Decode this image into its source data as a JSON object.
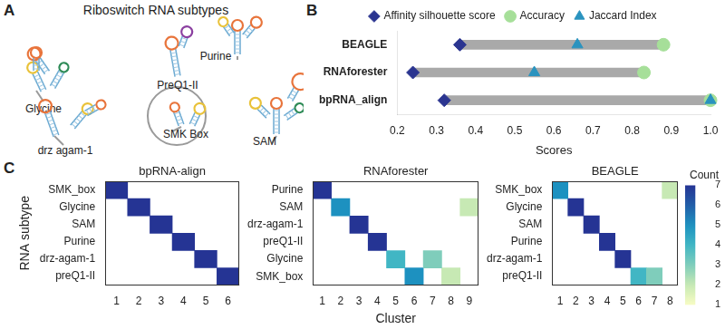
{
  "panel_a": {
    "panel": "A",
    "title": "Riboswitch RNA subtypes",
    "structures": [
      "Glycine",
      "drz agam-1",
      "PreQ1-II",
      "SMK Box",
      "Purine",
      "SAM"
    ]
  },
  "chart_data": [
    {
      "panel": "B",
      "type": "dumbbell",
      "orientation": "horizontal",
      "categories": [
        "BEAGLE",
        "RNAforester",
        "bpRNA_align"
      ],
      "series": [
        {
          "name": "Affinity silhouette score",
          "color": "#2b3590",
          "marker": "diamond",
          "values": [
            0.36,
            0.24,
            0.32
          ]
        },
        {
          "name": "Accuracy",
          "color": "#a6df99",
          "marker": "circle",
          "values": [
            0.88,
            0.83,
            1.0
          ]
        },
        {
          "name": "Jaccard Index",
          "color": "#2a93bf",
          "marker": "triangle",
          "values": [
            0.66,
            0.55,
            1.0
          ]
        }
      ],
      "x_label": "Scores",
      "xlim": [
        0.2,
        1.0
      ],
      "xticks": [
        0.2,
        0.3,
        0.4,
        0.5,
        0.6,
        0.7,
        0.8,
        0.9,
        {
          "value": 1,
          "label": "1.0"
        }
      ],
      "legend": "top",
      "grid": false
    },
    {
      "panel": "C",
      "type": "heatmap",
      "title": "bpRNA-align",
      "y_label": "RNA subtype",
      "y_categories": [
        "SMK_box",
        "Glycine",
        "SAM",
        "Purine",
        "drz-agam-1",
        "preQ1-II"
      ],
      "x_categories": [
        "1",
        "2",
        "3",
        "4",
        "5",
        "6"
      ],
      "cells": [
        [
          7,
          null,
          null,
          null,
          null,
          null
        ],
        [
          null,
          7,
          null,
          null,
          null,
          null
        ],
        [
          null,
          null,
          7,
          null,
          null,
          null
        ],
        [
          null,
          null,
          null,
          7,
          null,
          null
        ],
        [
          null,
          null,
          null,
          null,
          7,
          null
        ],
        [
          null,
          null,
          null,
          null,
          null,
          7
        ]
      ]
    },
    {
      "type": "heatmap",
      "title": "RNAforester",
      "x_label": "Cluster",
      "y_categories": [
        "Purine",
        "SAM",
        "drz-agam-1",
        "preQ1-II",
        "Glycine",
        "SMK_box"
      ],
      "x_categories": [
        "1",
        "2",
        "3",
        "4",
        "5",
        "6",
        "7",
        "8",
        "9"
      ],
      "cells": [
        [
          7,
          null,
          null,
          null,
          null,
          null,
          null,
          null,
          null
        ],
        [
          null,
          5,
          null,
          null,
          null,
          null,
          null,
          null,
          2
        ],
        [
          null,
          null,
          7,
          null,
          null,
          null,
          null,
          null,
          null
        ],
        [
          null,
          null,
          null,
          7,
          null,
          null,
          null,
          null,
          null
        ],
        [
          null,
          null,
          null,
          null,
          4,
          null,
          3,
          null,
          null
        ],
        [
          null,
          null,
          null,
          null,
          null,
          5,
          null,
          2,
          null
        ]
      ]
    },
    {
      "type": "heatmap",
      "title": "BEAGLE",
      "y_categories": [
        "SMK_box",
        "Glycine",
        "SAM",
        "Purine",
        "drz-agam-1",
        "preQ1-II"
      ],
      "x_categories": [
        "1",
        "2",
        "3",
        "4",
        "5",
        "6",
        "7",
        "8"
      ],
      "cells": [
        [
          5,
          null,
          null,
          null,
          null,
          null,
          null,
          2
        ],
        [
          null,
          7,
          null,
          null,
          null,
          null,
          null,
          null
        ],
        [
          null,
          null,
          7,
          null,
          null,
          null,
          null,
          null
        ],
        [
          null,
          null,
          null,
          7,
          null,
          null,
          null,
          null
        ],
        [
          null,
          null,
          null,
          null,
          7,
          null,
          null,
          null
        ],
        [
          null,
          null,
          null,
          null,
          null,
          4,
          3,
          null
        ]
      ],
      "colorbar": {
        "title": "Count",
        "range": [
          1,
          7
        ],
        "ticks": [
          1,
          2,
          3,
          4,
          5,
          6,
          7
        ]
      }
    }
  ]
}
